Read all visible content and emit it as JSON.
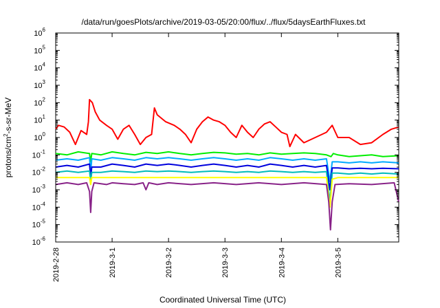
{
  "chart_data": {
    "type": "line",
    "title": "/data/run/goesPlots/archive/2019-03-05/20:00/flux/../flux/5daysEarthFluxes.txt",
    "xlabel": "Coordinated Universal Time (UTC)",
    "ylabel": "protons/cm²-s-sr-MeV",
    "ylabel_parts": {
      "pre": "protons/cm",
      "sup": "2",
      "post": "-s-sr-MeV"
    },
    "yscale": "log",
    "ylim_exponents": [
      -6,
      6
    ],
    "y_ticks": [
      {
        "exp": "-6"
      },
      {
        "exp": "-5"
      },
      {
        "exp": "-4"
      },
      {
        "exp": "-3"
      },
      {
        "exp": "-2"
      },
      {
        "exp": "-1"
      },
      {
        "exp": "0"
      },
      {
        "exp": "1"
      },
      {
        "exp": "2"
      },
      {
        "exp": "3"
      },
      {
        "exp": "4"
      },
      {
        "exp": "5"
      },
      {
        "exp": "6"
      }
    ],
    "xlim_days": [
      0,
      6.08
    ],
    "x_ticks": [
      {
        "label": "2019-2-28",
        "day": 0
      },
      {
        "label": "2019-3-1",
        "day": 1
      },
      {
        "label": "2019-3-2",
        "day": 2
      },
      {
        "label": "2019-3-3",
        "day": 3
      },
      {
        "label": "2019-3-4",
        "day": 4
      },
      {
        "label": "2019-3-5",
        "day": 5
      }
    ],
    "grid": false,
    "series": [
      {
        "color": "#ff0000",
        "points": [
          [
            0.0,
            3.0
          ],
          [
            0.05,
            5.0
          ],
          [
            0.15,
            4.0
          ],
          [
            0.25,
            2.0
          ],
          [
            0.35,
            0.4
          ],
          [
            0.45,
            2.5
          ],
          [
            0.55,
            1.5
          ],
          [
            0.58,
            8.0
          ],
          [
            0.6,
            150
          ],
          [
            0.65,
            100
          ],
          [
            0.7,
            30
          ],
          [
            0.78,
            10
          ],
          [
            0.9,
            5.0
          ],
          [
            1.0,
            3.0
          ],
          [
            1.1,
            0.8
          ],
          [
            1.2,
            3.0
          ],
          [
            1.3,
            5.0
          ],
          [
            1.4,
            1.5
          ],
          [
            1.5,
            0.4
          ],
          [
            1.6,
            1.0
          ],
          [
            1.7,
            1.5
          ],
          [
            1.75,
            50
          ],
          [
            1.8,
            20
          ],
          [
            1.95,
            8.0
          ],
          [
            2.1,
            5.0
          ],
          [
            2.2,
            3.0
          ],
          [
            2.3,
            1.5
          ],
          [
            2.4,
            0.5
          ],
          [
            2.5,
            3.0
          ],
          [
            2.6,
            8.0
          ],
          [
            2.7,
            15
          ],
          [
            2.8,
            10
          ],
          [
            2.9,
            8.0
          ],
          [
            3.0,
            5.0
          ],
          [
            3.1,
            2.0
          ],
          [
            3.2,
            1.0
          ],
          [
            3.3,
            5.0
          ],
          [
            3.4,
            2.0
          ],
          [
            3.5,
            1.0
          ],
          [
            3.6,
            3.0
          ],
          [
            3.7,
            6.0
          ],
          [
            3.8,
            8.0
          ],
          [
            3.9,
            4.0
          ],
          [
            4.0,
            2.0
          ],
          [
            4.1,
            1.5
          ],
          [
            4.15,
            0.3
          ],
          [
            4.25,
            1.5
          ],
          [
            4.4,
            0.5
          ],
          [
            4.6,
            1.0
          ],
          [
            4.8,
            2.0
          ],
          [
            4.9,
            5.0
          ],
          [
            5.0,
            1.0
          ],
          [
            5.2,
            1.0
          ],
          [
            5.4,
            0.4
          ],
          [
            5.6,
            0.5
          ],
          [
            5.8,
            1.5
          ],
          [
            5.95,
            3.0
          ],
          [
            6.08,
            4.0
          ]
        ]
      },
      {
        "color": "#00ee00",
        "points": [
          [
            0.0,
            0.12
          ],
          [
            0.2,
            0.1
          ],
          [
            0.4,
            0.15
          ],
          [
            0.6,
            0.12
          ],
          [
            0.62,
            0.04
          ],
          [
            0.64,
            0.12
          ],
          [
            0.8,
            0.1
          ],
          [
            1.0,
            0.15
          ],
          [
            1.2,
            0.12
          ],
          [
            1.4,
            0.1
          ],
          [
            1.6,
            0.14
          ],
          [
            1.8,
            0.12
          ],
          [
            2.0,
            0.15
          ],
          [
            2.2,
            0.12
          ],
          [
            2.4,
            0.1
          ],
          [
            2.6,
            0.12
          ],
          [
            2.8,
            0.14
          ],
          [
            3.0,
            0.13
          ],
          [
            3.2,
            0.11
          ],
          [
            3.4,
            0.12
          ],
          [
            3.6,
            0.1
          ],
          [
            3.8,
            0.13
          ],
          [
            4.0,
            0.11
          ],
          [
            4.2,
            0.12
          ],
          [
            4.4,
            0.13
          ],
          [
            4.6,
            0.12
          ],
          [
            4.8,
            0.1
          ],
          [
            4.88,
            0.08
          ],
          [
            4.92,
            0.12
          ],
          [
            5.0,
            0.1
          ],
          [
            5.2,
            0.08
          ],
          [
            5.4,
            0.09
          ],
          [
            5.6,
            0.1
          ],
          [
            5.8,
            0.08
          ],
          [
            6.08,
            0.09
          ]
        ]
      },
      {
        "color": "#00aaff",
        "points": [
          [
            0.0,
            0.05
          ],
          [
            0.2,
            0.06
          ],
          [
            0.4,
            0.05
          ],
          [
            0.6,
            0.07
          ],
          [
            0.62,
            0.01
          ],
          [
            0.64,
            0.06
          ],
          [
            0.8,
            0.05
          ],
          [
            1.0,
            0.07
          ],
          [
            1.2,
            0.06
          ],
          [
            1.4,
            0.05
          ],
          [
            1.6,
            0.07
          ],
          [
            1.8,
            0.06
          ],
          [
            2.0,
            0.07
          ],
          [
            2.2,
            0.06
          ],
          [
            2.4,
            0.05
          ],
          [
            2.6,
            0.06
          ],
          [
            2.8,
            0.07
          ],
          [
            3.0,
            0.06
          ],
          [
            3.2,
            0.05
          ],
          [
            3.4,
            0.06
          ],
          [
            3.6,
            0.05
          ],
          [
            3.8,
            0.07
          ],
          [
            4.0,
            0.06
          ],
          [
            4.2,
            0.05
          ],
          [
            4.4,
            0.06
          ],
          [
            4.6,
            0.05
          ],
          [
            4.8,
            0.06
          ],
          [
            4.86,
            0.003
          ],
          [
            4.9,
            0.04
          ],
          [
            5.0,
            0.04
          ],
          [
            5.2,
            0.035
          ],
          [
            5.4,
            0.04
          ],
          [
            5.6,
            0.035
          ],
          [
            5.8,
            0.04
          ],
          [
            6.08,
            0.035
          ]
        ]
      },
      {
        "color": "#0000dd",
        "points": [
          [
            0.0,
            0.02
          ],
          [
            0.2,
            0.025
          ],
          [
            0.4,
            0.02
          ],
          [
            0.6,
            0.03
          ],
          [
            0.62,
            0.005
          ],
          [
            0.64,
            0.02
          ],
          [
            0.8,
            0.02
          ],
          [
            1.0,
            0.03
          ],
          [
            1.2,
            0.025
          ],
          [
            1.4,
            0.02
          ],
          [
            1.6,
            0.03
          ],
          [
            1.8,
            0.025
          ],
          [
            2.0,
            0.03
          ],
          [
            2.2,
            0.025
          ],
          [
            2.4,
            0.02
          ],
          [
            2.6,
            0.025
          ],
          [
            2.8,
            0.03
          ],
          [
            3.0,
            0.025
          ],
          [
            3.2,
            0.02
          ],
          [
            3.4,
            0.025
          ],
          [
            3.6,
            0.02
          ],
          [
            3.8,
            0.03
          ],
          [
            4.0,
            0.025
          ],
          [
            4.2,
            0.02
          ],
          [
            4.4,
            0.025
          ],
          [
            4.6,
            0.02
          ],
          [
            4.8,
            0.025
          ],
          [
            4.86,
            0.001
          ],
          [
            4.9,
            0.018
          ],
          [
            5.0,
            0.018
          ],
          [
            5.2,
            0.016
          ],
          [
            5.4,
            0.017
          ],
          [
            5.6,
            0.016
          ],
          [
            5.8,
            0.017
          ],
          [
            6.08,
            0.016
          ]
        ]
      },
      {
        "color": "#00bbbb",
        "points": [
          [
            0.0,
            0.01
          ],
          [
            0.2,
            0.012
          ],
          [
            0.4,
            0.01
          ],
          [
            0.6,
            0.012
          ],
          [
            0.62,
            0.003
          ],
          [
            0.64,
            0.01
          ],
          [
            0.8,
            0.01
          ],
          [
            1.0,
            0.012
          ],
          [
            1.2,
            0.011
          ],
          [
            1.4,
            0.01
          ],
          [
            1.6,
            0.012
          ],
          [
            1.8,
            0.011
          ],
          [
            2.0,
            0.012
          ],
          [
            2.2,
            0.011
          ],
          [
            2.4,
            0.01
          ],
          [
            2.6,
            0.011
          ],
          [
            2.8,
            0.012
          ],
          [
            3.0,
            0.011
          ],
          [
            3.2,
            0.01
          ],
          [
            3.4,
            0.011
          ],
          [
            3.6,
            0.01
          ],
          [
            3.8,
            0.012
          ],
          [
            4.0,
            0.011
          ],
          [
            4.2,
            0.01
          ],
          [
            4.4,
            0.011
          ],
          [
            4.6,
            0.01
          ],
          [
            4.8,
            0.011
          ],
          [
            4.86,
            0.0002
          ],
          [
            4.9,
            0.009
          ],
          [
            5.0,
            0.009
          ],
          [
            5.2,
            0.008
          ],
          [
            5.4,
            0.009
          ],
          [
            5.6,
            0.008
          ],
          [
            5.8,
            0.009
          ],
          [
            6.08,
            0.008
          ]
        ]
      },
      {
        "color": "#ffff00",
        "points": [
          [
            0.0,
            0.005
          ],
          [
            0.6,
            0.005
          ],
          [
            0.62,
            0.002
          ],
          [
            0.64,
            0.005
          ],
          [
            1.5,
            0.005
          ],
          [
            2.0,
            0.005
          ],
          [
            3.0,
            0.005
          ],
          [
            4.0,
            0.005
          ],
          [
            4.8,
            0.005
          ],
          [
            4.86,
            0.0001
          ],
          [
            4.9,
            0.004
          ],
          [
            5.0,
            0.005
          ],
          [
            6.08,
            0.005
          ]
        ]
      },
      {
        "color": "#882288",
        "points": [
          [
            0.0,
            0.002
          ],
          [
            0.2,
            0.0025
          ],
          [
            0.4,
            0.002
          ],
          [
            0.55,
            0.0025
          ],
          [
            0.6,
            0.0008
          ],
          [
            0.62,
            5e-05
          ],
          [
            0.64,
            0.0008
          ],
          [
            0.68,
            0.0025
          ],
          [
            0.9,
            0.002
          ],
          [
            1.0,
            0.0025
          ],
          [
            1.2,
            0.0022
          ],
          [
            1.4,
            0.002
          ],
          [
            1.55,
            0.0025
          ],
          [
            1.6,
            0.001
          ],
          [
            1.65,
            0.0025
          ],
          [
            1.8,
            0.002
          ],
          [
            2.0,
            0.0025
          ],
          [
            2.4,
            0.002
          ],
          [
            2.8,
            0.0025
          ],
          [
            3.2,
            0.002
          ],
          [
            3.6,
            0.0025
          ],
          [
            4.0,
            0.002
          ],
          [
            4.4,
            0.0025
          ],
          [
            4.8,
            0.002
          ],
          [
            4.84,
            0.0002
          ],
          [
            4.87,
            5e-06
          ],
          [
            4.9,
            0.0002
          ],
          [
            4.95,
            0.002
          ],
          [
            5.2,
            0.0022
          ],
          [
            5.6,
            0.002
          ],
          [
            6.0,
            0.0025
          ],
          [
            6.08,
            0.0002
          ]
        ]
      }
    ]
  }
}
